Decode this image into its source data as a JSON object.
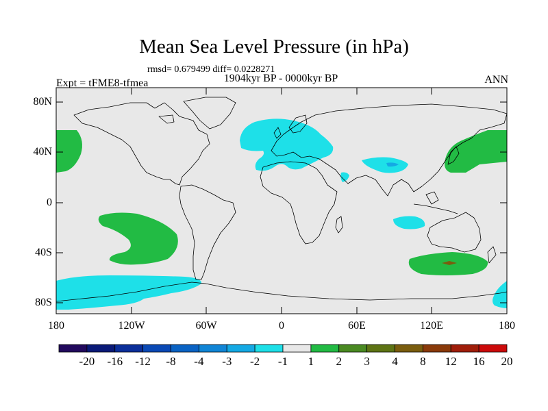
{
  "title": "Mean Sea Level Pressure (in hPa)",
  "stats": "rmsd= 0.679499 diff= 0.0228271",
  "period": "1904kyr BP - 0000kyr BP",
  "experiment": "Expt = tFME8-tfmea",
  "season": "ANN",
  "lat_labels": [
    "80N",
    "40N",
    "0",
    "40S",
    "80S"
  ],
  "lon_labels": [
    "180",
    "120W",
    "60W",
    "0",
    "60E",
    "120E",
    "180"
  ],
  "colorbar": {
    "labels": [
      "-20",
      "-16",
      "-12",
      "-8",
      "-4",
      "-3",
      "-2",
      "-1",
      "1",
      "2",
      "3",
      "4",
      "8",
      "12",
      "16",
      "20"
    ],
    "colors": [
      "#220a5e",
      "#0a1a78",
      "#0b2f9a",
      "#0a49b5",
      "#0a63c4",
      "#1085d6",
      "#14a9e4",
      "#1ee0e8",
      "#e8e8e8",
      "#22bb44",
      "#4a8a22",
      "#5e7414",
      "#7a5d0e",
      "#8a3a0a",
      "#a01e0a",
      "#cc0a0a"
    ]
  },
  "colors": {
    "background": "#e8e8e8",
    "negative": "#1ee0e8",
    "positive": "#22bb44",
    "dark_negative": "#14a9e4",
    "dark_positive": "#4a8a22"
  }
}
